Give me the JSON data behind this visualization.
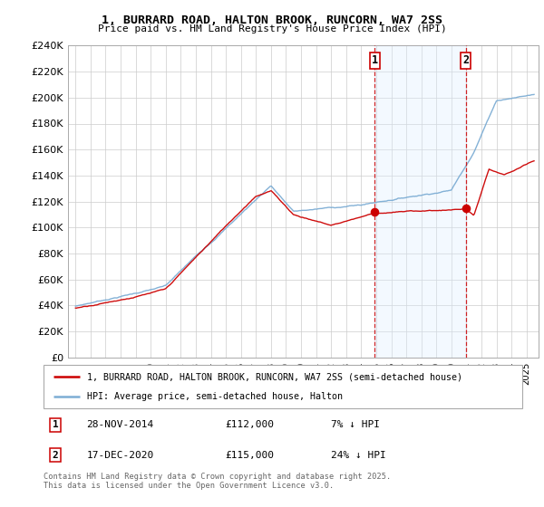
{
  "title_line1": "1, BURRARD ROAD, HALTON BROOK, RUNCORN, WA7 2SS",
  "title_line2": "Price paid vs. HM Land Registry's House Price Index (HPI)",
  "ylim": [
    0,
    240000
  ],
  "yticks": [
    0,
    20000,
    40000,
    60000,
    80000,
    100000,
    120000,
    140000,
    160000,
    180000,
    200000,
    220000,
    240000
  ],
  "ytick_labels": [
    "£0",
    "£20K",
    "£40K",
    "£60K",
    "£80K",
    "£100K",
    "£120K",
    "£140K",
    "£160K",
    "£180K",
    "£200K",
    "£220K",
    "£240K"
  ],
  "xmin": 1994.5,
  "xmax": 2025.8,
  "sale1_date": 2014.91,
  "sale1_price": 112000,
  "sale1_label": "1",
  "sale2_date": 2020.96,
  "sale2_price": 115000,
  "sale2_label": "2",
  "legend_line1": "1, BURRARD ROAD, HALTON BROOK, RUNCORN, WA7 2SS (semi-detached house)",
  "legend_line2": "HPI: Average price, semi-detached house, Halton",
  "copyright": "Contains HM Land Registry data © Crown copyright and database right 2025.\nThis data is licensed under the Open Government Licence v3.0.",
  "line_red_color": "#cc0000",
  "line_blue_color": "#7dadd4",
  "vline_color": "#cc0000",
  "span_color": "#ddeeff",
  "background_color": "#ffffff",
  "grid_color": "#cccccc"
}
